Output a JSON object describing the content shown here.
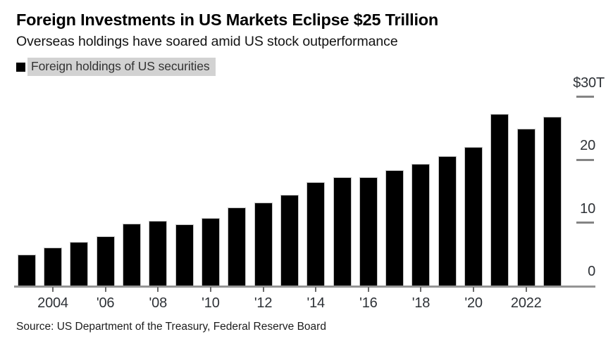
{
  "header": {
    "title": "Foreign Investments in US Markets Eclipse $25 Trillion",
    "subtitle": "Overseas holdings have soared amid US stock outperformance"
  },
  "legend": {
    "swatch_color": "#000000",
    "label": "Foreign holdings of US securities",
    "highlight_color": "#d2d2d2"
  },
  "source_note": "Source: US Department of the Treasury, Federal Reserve Board",
  "chart_data": {
    "type": "bar",
    "title": "Foreign Investments in US Markets Eclipse $25 Trillion",
    "subtitle": "Overseas holdings have soared amid US stock outperformance",
    "series_name": "Foreign holdings of US securities",
    "unit": "USD trillions",
    "bar_color": "#000000",
    "grid": false,
    "legend_position": "top-left",
    "y_axis": {
      "side": "right",
      "range": [
        0,
        30
      ],
      "ticks": [
        {
          "label": "$30T",
          "value": 30
        },
        {
          "label": "20",
          "value": 20
        },
        {
          "label": "10",
          "value": 10
        },
        {
          "label": "0",
          "value": 0
        }
      ]
    },
    "x_axis": {
      "ticks": [
        {
          "year": 2004,
          "label": "2004"
        },
        {
          "year": 2006,
          "label": "'06"
        },
        {
          "year": 2008,
          "label": "'08"
        },
        {
          "year": 2010,
          "label": "'10"
        },
        {
          "year": 2012,
          "label": "'12"
        },
        {
          "year": 2014,
          "label": "'14"
        },
        {
          "year": 2016,
          "label": "'16"
        },
        {
          "year": 2018,
          "label": "'18"
        },
        {
          "year": 2020,
          "label": "'20"
        },
        {
          "year": 2022,
          "label": "2022"
        }
      ]
    },
    "x": [
      2003,
      2004,
      2005,
      2006,
      2007,
      2008,
      2009,
      2010,
      2011,
      2012,
      2013,
      2014,
      2015,
      2016,
      2017,
      2018,
      2019,
      2020,
      2021,
      2022,
      2023
    ],
    "values": [
      4.9,
      6.0,
      6.9,
      7.8,
      9.8,
      10.3,
      9.7,
      10.7,
      12.4,
      13.2,
      14.4,
      16.4,
      17.2,
      17.2,
      18.4,
      19.4,
      20.6,
      22.0,
      27.3,
      25.0,
      26.9
    ]
  }
}
